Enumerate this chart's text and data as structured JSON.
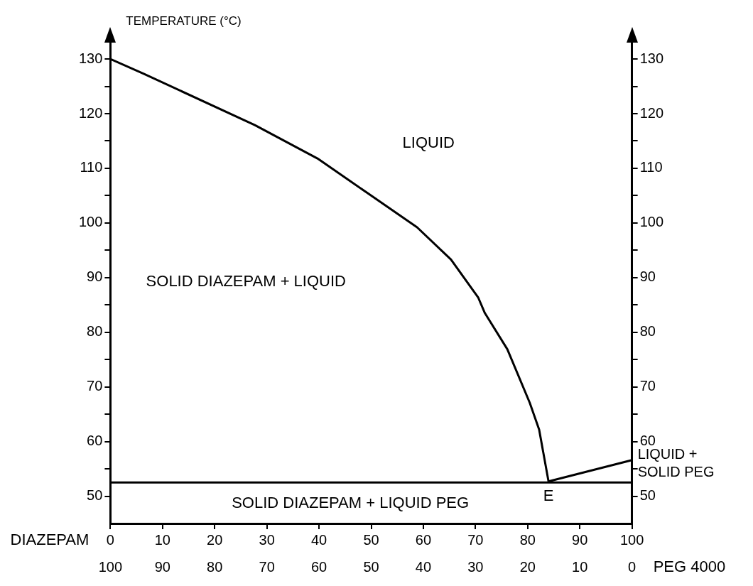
{
  "chart_data": {
    "type": "line",
    "xlabel": "DIAZEPAM",
    "x2label": "PEG 4000",
    "ylabel": "TEMPERATURE (°C)",
    "xlim": [
      0,
      100
    ],
    "xticks": [
      0,
      10,
      20,
      30,
      40,
      50,
      60,
      70,
      80,
      90,
      100
    ],
    "x2lim": [
      100,
      0
    ],
    "x2ticks": [
      100,
      90,
      80,
      70,
      60,
      50,
      40,
      30,
      20,
      10,
      0
    ],
    "ylim": [
      45,
      133
    ],
    "yticks": [
      50,
      {
        "value": 55,
        "label": null
      },
      60,
      {
        "value": 65,
        "label": null
      },
      70,
      {
        "value": 75,
        "label": null
      },
      80,
      {
        "value": 85,
        "label": null
      },
      90,
      {
        "value": 95,
        "label": null
      },
      100,
      {
        "value": 105,
        "label": null
      },
      110,
      {
        "value": 115,
        "label": null
      },
      120,
      {
        "value": 125,
        "label": null
      },
      130
    ],
    "y2lim": [
      45,
      133
    ],
    "y2ticks": [
      50,
      {
        "value": 55,
        "label": null
      },
      60,
      {
        "value": 65,
        "label": null
      },
      70,
      {
        "value": 75,
        "label": null
      },
      80,
      {
        "value": 85,
        "label": null
      },
      90,
      {
        "value": 95,
        "label": null
      },
      100,
      {
        "value": 105,
        "label": null
      },
      110,
      {
        "value": 115,
        "label": null
      },
      120,
      {
        "value": 125,
        "label": null
      },
      130
    ],
    "marker": "none",
    "line_style": "solid",
    "series": [
      {
        "color": "#000000",
        "x": [
          0,
          6.4,
          27.7,
          39.7,
          49.1,
          58.8,
          65.3,
          70.5,
          71.8,
          76.1,
          80.4,
          82.2,
          84
        ],
        "values": [
          130,
          127.3,
          117.9,
          111.8,
          105.6,
          99.2,
          93.3,
          86.4,
          83.5,
          76.9,
          67.1,
          62.2,
          52.7
        ]
      },
      {
        "color": "#000000",
        "x": [
          84,
          100
        ],
        "values": [
          52.7,
          56.6
        ]
      }
    ],
    "ref_lines": [
      {
        "axis": "y",
        "value": 52.5,
        "color": "#000000"
      }
    ],
    "annotations": [
      "LIQUID",
      "SOLID DIAZEPAM + LIQUID",
      "SOLID DIAZEPAM + LIQUID PEG",
      "LIQUID + SOLID PEG",
      {
        "text": "E",
        "x": 84,
        "y": 52.7
      }
    ]
  }
}
